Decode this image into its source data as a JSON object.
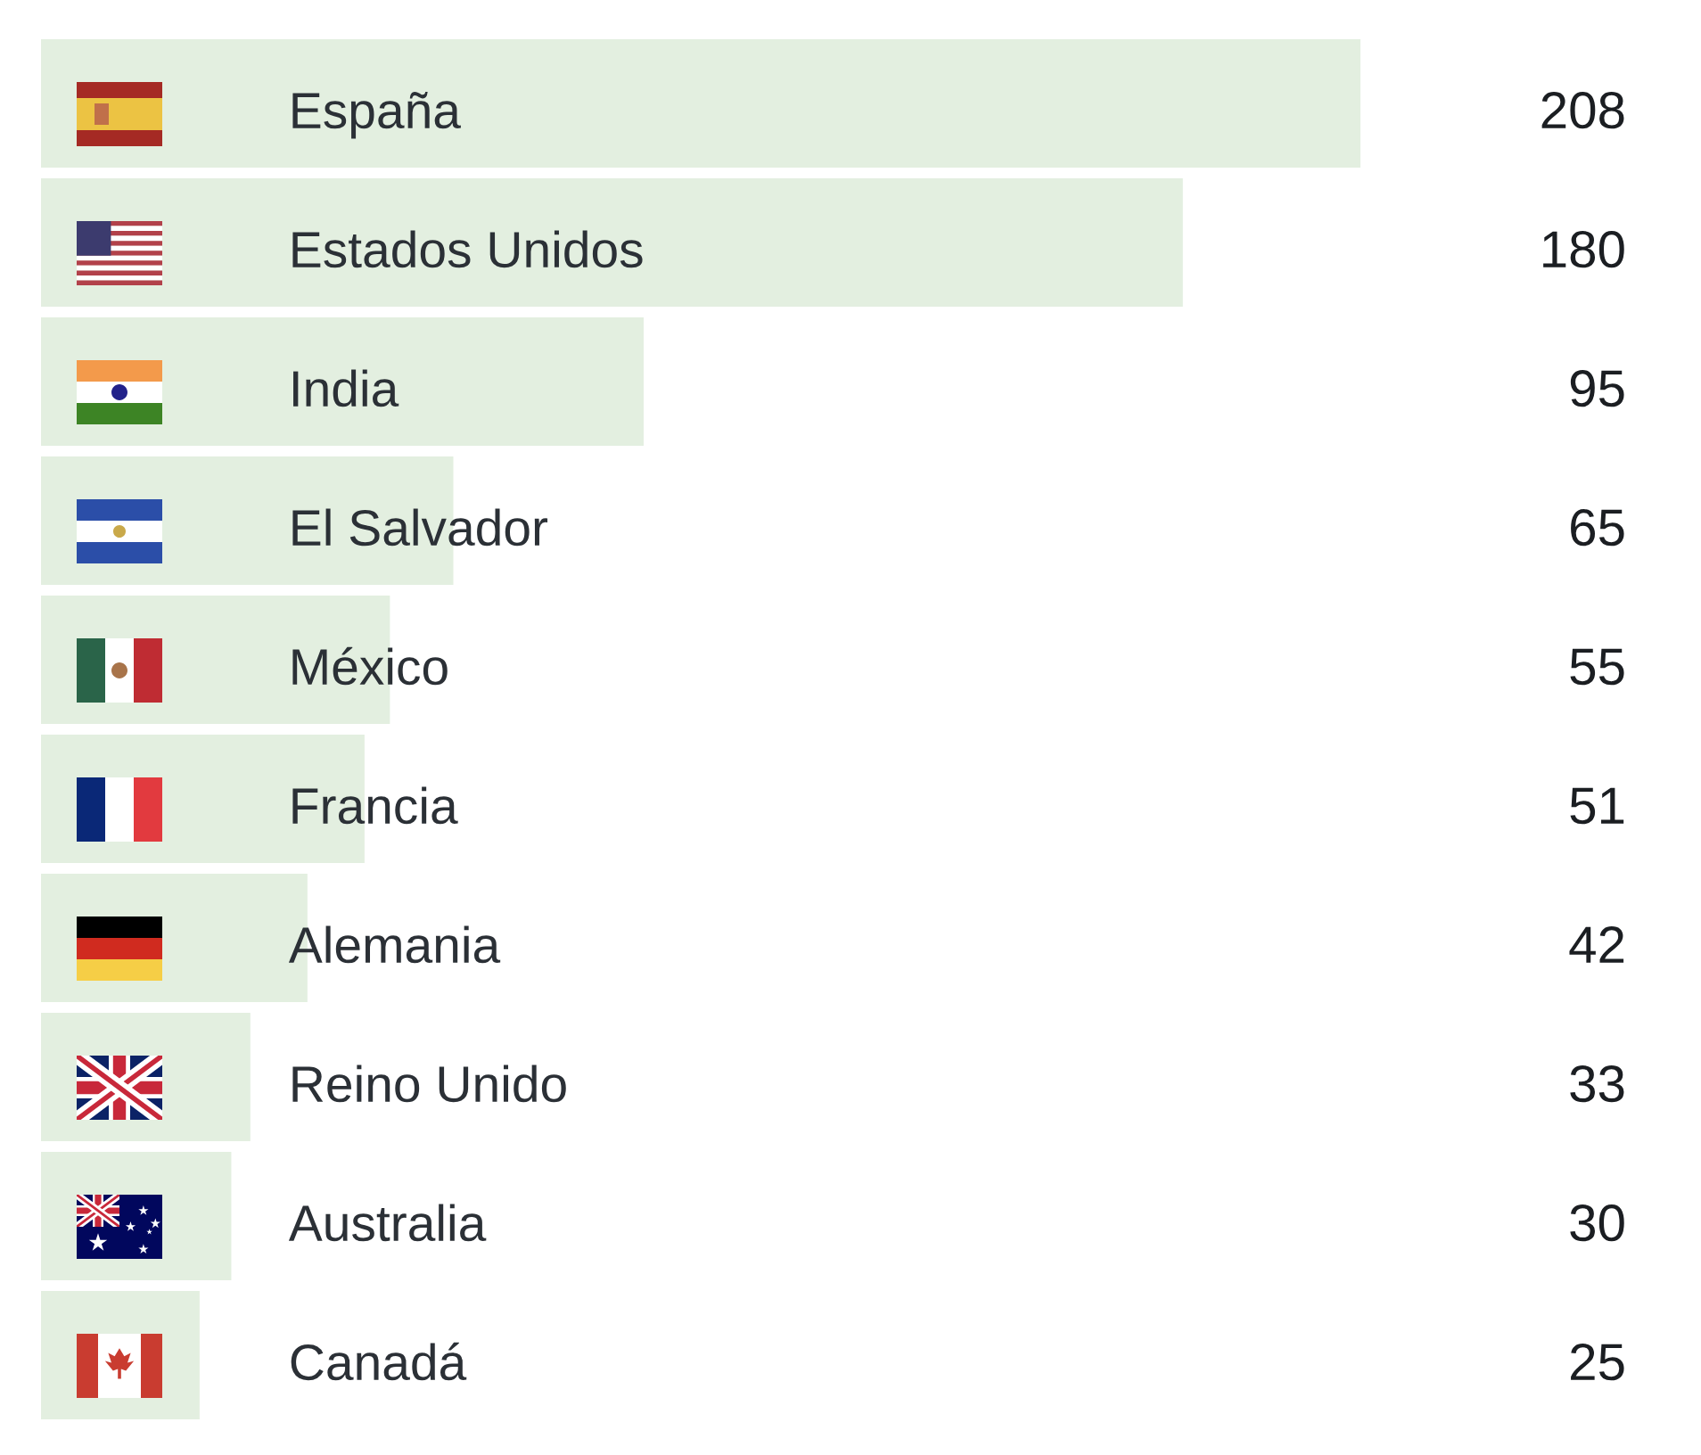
{
  "chart_data": {
    "type": "bar",
    "orientation": "horizontal",
    "categories": [
      "España",
      "Estados Unidos",
      "India",
      "El Salvador",
      "México",
      "Francia",
      "Alemania",
      "Reino Unido",
      "Australia",
      "Canadá"
    ],
    "values": [
      208,
      180,
      95,
      65,
      55,
      51,
      42,
      33,
      30,
      25
    ],
    "color": "#e3efe0",
    "data_labels": true
  }
}
